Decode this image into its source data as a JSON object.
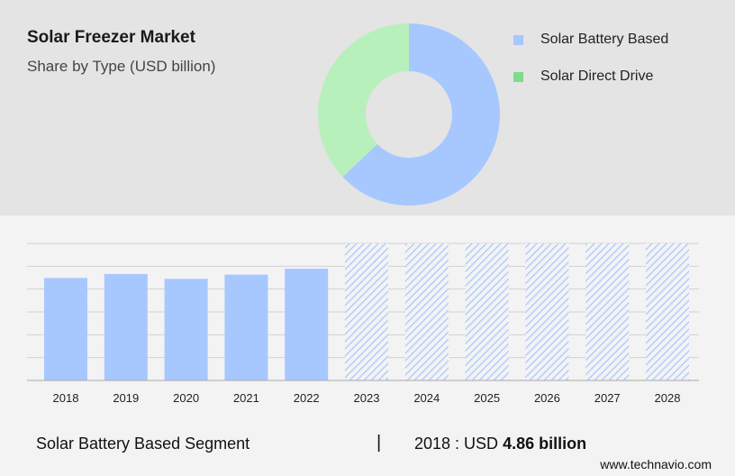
{
  "header": {
    "title": "Solar Freezer Market",
    "subtitle": "Share by Type (USD billion)"
  },
  "legend": [
    {
      "label": "Solar Battery Based",
      "color": "#a7c7ff"
    },
    {
      "label": "Solar Direct Drive",
      "color": "#7ddc8a"
    }
  ],
  "footer": {
    "segment": "Solar Battery Based Segment",
    "separator": "|",
    "year_prefix": "2018 : USD ",
    "value": "4.86 billion",
    "site": "www.technavio.com"
  },
  "chart_data": [
    {
      "type": "pie",
      "subtype": "donut",
      "labels": [
        "Solar Battery Based",
        "Solar Direct Drive"
      ],
      "values": [
        63,
        37
      ],
      "colors": [
        "#a7c7ff",
        "#b8f0bb"
      ]
    },
    {
      "type": "bar",
      "categories": [
        "2018",
        "2019",
        "2020",
        "2021",
        "2022",
        "2023",
        "2024",
        "2025",
        "2026",
        "2027",
        "2028"
      ],
      "values": [
        4.86,
        5.05,
        4.82,
        5.02,
        5.3,
        null,
        null,
        null,
        null,
        null,
        null
      ],
      "forecast_categories": [
        "2023",
        "2024",
        "2025",
        "2026",
        "2027",
        "2028"
      ],
      "ylim": [
        0,
        6.5
      ],
      "grid": true,
      "color": "#a7c7ff"
    }
  ]
}
